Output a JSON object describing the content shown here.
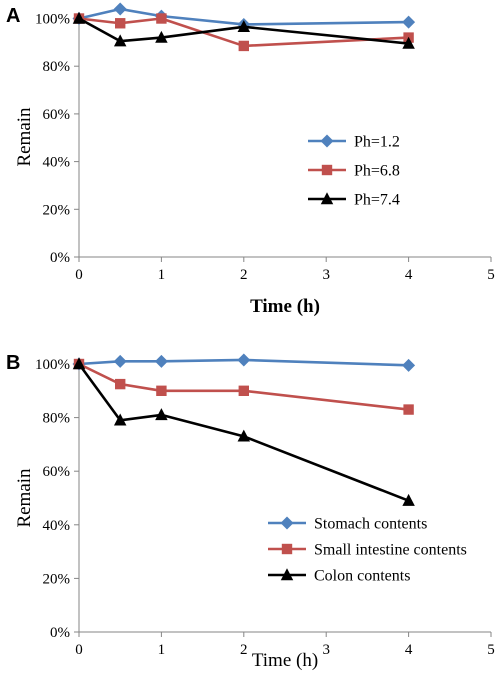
{
  "chart_data": [
    {
      "panel_label": "A",
      "type": "line",
      "xlabel": "Time (h)",
      "ylabel": "Remain",
      "xlim": [
        0,
        5
      ],
      "ylim": [
        0,
        100
      ],
      "x_ticks": [
        "0",
        "1",
        "2",
        "3",
        "4",
        "5"
      ],
      "y_ticks": [
        "0%",
        "20%",
        "40%",
        "60%",
        "80%",
        "100%"
      ],
      "grid": false,
      "legend_position": "right",
      "x": [
        0,
        0.5,
        1,
        2,
        4
      ],
      "series": [
        {
          "name": "Ph=1.2",
          "values": [
            100,
            104,
            101,
            97.5,
            98.5
          ],
          "color": "#4f81bd",
          "marker": "diamond"
        },
        {
          "name": "Ph=6.8",
          "values": [
            100,
            98,
            100,
            88.5,
            92
          ],
          "color": "#c0504d",
          "marker": "square"
        },
        {
          "name": "Ph=7.4",
          "values": [
            100,
            90.5,
            92,
            96.5,
            89.5
          ],
          "color": "#000000",
          "marker": "triangle"
        }
      ]
    },
    {
      "panel_label": "B",
      "type": "line",
      "xlabel": "Time (h)",
      "ylabel": "Remain",
      "xlim": [
        0,
        5
      ],
      "ylim": [
        0,
        100
      ],
      "x_ticks": [
        "0",
        "1",
        "2",
        "3",
        "4",
        "5"
      ],
      "y_ticks": [
        "0%",
        "20%",
        "40%",
        "60%",
        "80%",
        "100%"
      ],
      "grid": false,
      "legend_position": "bottom-right",
      "x": [
        0,
        0.5,
        1,
        2,
        4
      ],
      "series": [
        {
          "name": "Stomach contents",
          "values": [
            100,
            101,
            101,
            101.5,
            99.5
          ],
          "color": "#4f81bd",
          "marker": "diamond"
        },
        {
          "name": "Small intestine contents",
          "values": [
            100,
            92.5,
            90,
            90,
            83
          ],
          "color": "#c0504d",
          "marker": "square"
        },
        {
          "name": "Colon contents",
          "values": [
            100,
            79,
            81,
            73,
            49
          ],
          "color": "#000000",
          "marker": "triangle"
        }
      ]
    }
  ]
}
